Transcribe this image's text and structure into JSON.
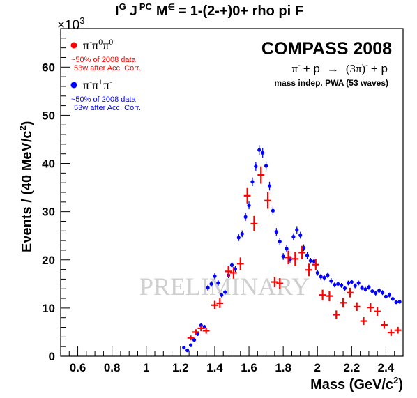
{
  "chart_data": {
    "type": "scatter",
    "title": "1-(2-+)0+ rho pi F",
    "title_prefix": "I",
    "title_sup_g": "G",
    "title_mid": "J",
    "title_sup_pc": "PC",
    "title_m": "M",
    "title_sup_eps": "∈",
    "title_eq": "=",
    "experiment": "COMPASS 2008",
    "reaction": {
      "pi": "π",
      "minus": "-",
      "plus_p": "+ p",
      "arrow": "→",
      "three_pi": "(3π)",
      "three_pi_sup": "-",
      "plus_p2": "+ p"
    },
    "analysis_note": "mass indep. PWA (53 waves)",
    "watermark": "PRELIMINARY",
    "xlabel": "Mass (GeV/c",
    "xlabel_sup": "2",
    "xlabel_close": ")",
    "ylabel": "Events / (40 MeV/c",
    "ylabel_sup": "2",
    "ylabel_close": ")",
    "y_multiplier": "×10",
    "y_multiplier_exp": "3",
    "xlim": [
      0.5,
      2.5
    ],
    "ylim": [
      0,
      68
    ],
    "x_ticks": [
      0.6,
      0.8,
      1,
      1.2,
      1.4,
      1.6,
      1.8,
      2,
      2.2,
      2.4
    ],
    "x_tick_labels": [
      "0.6",
      "0.8",
      "1",
      "1.2",
      "1.4",
      "1.6",
      "1.8",
      "2",
      "2.2",
      "2.4"
    ],
    "y_ticks": [
      0,
      10,
      20,
      30,
      40,
      50,
      60
    ],
    "y_tick_labels": [
      "0",
      "10",
      "20",
      "30",
      "40",
      "50",
      "60"
    ],
    "grid": false,
    "legend_position": "top-left",
    "series": [
      {
        "name": "π⁻π⁰π⁰",
        "legend_base": "π",
        "legend_s1": "-",
        "legend_mid": "π",
        "legend_s2": "0",
        "legend_end": "π",
        "legend_s3": "0",
        "note1": "~50% of 2008 data",
        "note2": "53w after Acc. Corr.",
        "color": "#ff0000",
        "marker": "cross",
        "x_err": 0.02,
        "points": [
          [
            1.26,
            3.8,
            0.5
          ],
          [
            1.29,
            5.0,
            0.6
          ],
          [
            1.32,
            5.8,
            0.6
          ],
          [
            1.35,
            5.3,
            0.6
          ],
          [
            1.4,
            10.6,
            0.9
          ],
          [
            1.43,
            11.0,
            1.0
          ],
          [
            1.48,
            17.6,
            1.2
          ],
          [
            1.51,
            17.3,
            1.2
          ],
          [
            1.55,
            19.2,
            1.3
          ],
          [
            1.59,
            33.3,
            1.6
          ],
          [
            1.63,
            27.5,
            1.6
          ],
          [
            1.67,
            37.6,
            1.8
          ],
          [
            1.71,
            32.3,
            1.7
          ],
          [
            1.75,
            15.4,
            1.1
          ],
          [
            1.78,
            15.1,
            1.1
          ],
          [
            1.83,
            20.5,
            1.4
          ],
          [
            1.87,
            20.2,
            1.5
          ],
          [
            1.91,
            21.5,
            1.4
          ],
          [
            1.95,
            17.9,
            1.3
          ],
          [
            1.99,
            19.0,
            1.2
          ],
          [
            2.03,
            12.7,
            1.1
          ],
          [
            2.07,
            12.5,
            1.1
          ],
          [
            2.11,
            8.6,
            0.9
          ],
          [
            2.15,
            11.1,
            1.0
          ],
          [
            2.19,
            13.2,
            1.0
          ],
          [
            2.23,
            10.3,
            0.9
          ],
          [
            2.27,
            7.3,
            0.8
          ],
          [
            2.31,
            10.1,
            0.9
          ],
          [
            2.35,
            9.3,
            0.9
          ],
          [
            2.39,
            6.5,
            0.8
          ],
          [
            2.43,
            4.9,
            0.7
          ],
          [
            2.47,
            5.4,
            0.7
          ]
        ]
      },
      {
        "name": "π⁻π⁺π⁻",
        "legend_base": "π",
        "legend_s1": "-",
        "legend_mid": "π",
        "legend_s2": "+",
        "legend_end": "π",
        "legend_s3": "-",
        "note1": "~50% of 2008 data",
        "note2": "53w after Acc. Corr.",
        "color": "#0000ff",
        "marker": "dot",
        "x_err": 0,
        "points": [
          [
            1.22,
            1.8,
            0.3
          ],
          [
            1.24,
            1.2,
            0.3
          ],
          [
            1.26,
            2.3,
            0.3
          ],
          [
            1.28,
            3.4,
            0.3
          ],
          [
            1.3,
            4.6,
            0.4
          ],
          [
            1.32,
            6.4,
            0.4
          ],
          [
            1.34,
            6.1,
            0.4
          ],
          [
            1.36,
            14.2,
            0.6
          ],
          [
            1.38,
            15.0,
            0.6
          ],
          [
            1.4,
            16.6,
            0.6
          ],
          [
            1.42,
            15.2,
            0.6
          ],
          [
            1.44,
            12.7,
            0.5
          ],
          [
            1.46,
            13.3,
            0.5
          ],
          [
            1.48,
            16.8,
            0.6
          ],
          [
            1.5,
            18.9,
            0.6
          ],
          [
            1.52,
            18.1,
            0.6
          ],
          [
            1.54,
            24.6,
            0.7
          ],
          [
            1.56,
            25.4,
            0.7
          ],
          [
            1.58,
            28.9,
            0.8
          ],
          [
            1.6,
            31.3,
            0.8
          ],
          [
            1.62,
            36.2,
            0.9
          ],
          [
            1.64,
            39.4,
            0.9
          ],
          [
            1.66,
            42.8,
            1.0
          ],
          [
            1.68,
            42.2,
            1.0
          ],
          [
            1.7,
            39.5,
            0.9
          ],
          [
            1.72,
            35.3,
            0.9
          ],
          [
            1.74,
            30.2,
            0.8
          ],
          [
            1.76,
            25.8,
            0.8
          ],
          [
            1.78,
            23.8,
            0.7
          ],
          [
            1.8,
            20.7,
            0.7
          ],
          [
            1.82,
            22.3,
            0.7
          ],
          [
            1.84,
            20.1,
            0.7
          ],
          [
            1.86,
            24.8,
            0.7
          ],
          [
            1.88,
            26.2,
            0.8
          ],
          [
            1.9,
            25.1,
            0.7
          ],
          [
            1.92,
            22.5,
            0.7
          ],
          [
            1.94,
            20.9,
            0.7
          ],
          [
            1.96,
            19.8,
            0.6
          ],
          [
            1.98,
            19.7,
            0.6
          ],
          [
            2.0,
            17.3,
            0.6
          ],
          [
            2.02,
            16.5,
            0.6
          ],
          [
            2.04,
            16.3,
            0.6
          ],
          [
            2.06,
            16.8,
            0.6
          ],
          [
            2.08,
            15.6,
            0.6
          ],
          [
            2.1,
            14.8,
            0.5
          ],
          [
            2.12,
            15.0,
            0.5
          ],
          [
            2.14,
            14.7,
            0.5
          ],
          [
            2.16,
            14.1,
            0.5
          ],
          [
            2.18,
            15.2,
            0.5
          ],
          [
            2.2,
            15.4,
            0.5
          ],
          [
            2.22,
            14.6,
            0.5
          ],
          [
            2.24,
            15.2,
            0.5
          ],
          [
            2.26,
            14.2,
            0.5
          ],
          [
            2.28,
            13.9,
            0.5
          ],
          [
            2.3,
            14.3,
            0.5
          ],
          [
            2.32,
            13.5,
            0.5
          ],
          [
            2.34,
            13.1,
            0.5
          ],
          [
            2.36,
            13.6,
            0.5
          ],
          [
            2.38,
            13.2,
            0.5
          ],
          [
            2.4,
            12.4,
            0.5
          ],
          [
            2.42,
            12.7,
            0.5
          ],
          [
            2.44,
            11.9,
            0.4
          ],
          [
            2.46,
            11.2,
            0.4
          ],
          [
            2.48,
            11.3,
            0.4
          ]
        ]
      }
    ]
  }
}
